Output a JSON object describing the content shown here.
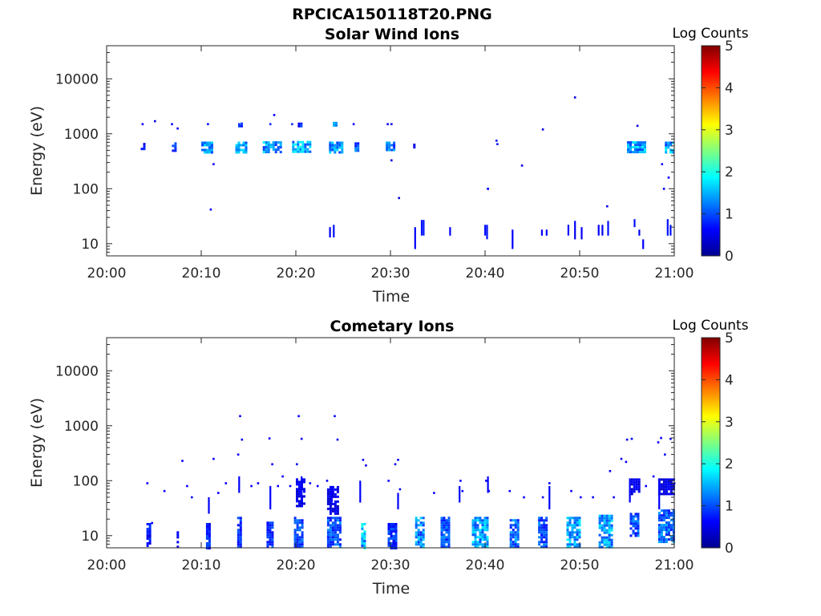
{
  "figure": {
    "main_title": "RPCICA150118T20.PNG"
  },
  "chart_data": [
    {
      "type": "heatmap",
      "title": "Solar Wind Ions",
      "xlabel": "Time",
      "ylabel": "Energy (eV)",
      "xticks": [
        "20:00",
        "20:10",
        "20:20",
        "20:30",
        "20:40",
        "20:50",
        "21:00"
      ],
      "xlim_min": [
        0,
        60
      ],
      "yticks": [
        10,
        100,
        1000,
        10000
      ],
      "ylim": [
        6,
        40000
      ],
      "yscale": "log",
      "colorbar": {
        "label": "Log Counts",
        "ticks": [
          0,
          1,
          2,
          3,
          4,
          5
        ],
        "range": [
          0,
          5
        ],
        "colormap": "jet"
      },
      "clusters": [
        {
          "t": [
            3.6,
            4.0
          ],
          "e": [
            520,
            680
          ],
          "c": 0.8
        },
        {
          "t": [
            6.9,
            7.2
          ],
          "e": [
            500,
            700
          ],
          "c": 0.9
        },
        {
          "t": [
            10.0,
            11.2
          ],
          "e": [
            480,
            720
          ],
          "c": 1.5
        },
        {
          "t": [
            13.6,
            14.8
          ],
          "e": [
            480,
            720
          ],
          "c": 1.6
        },
        {
          "t": [
            16.5,
            18.4
          ],
          "e": [
            470,
            730
          ],
          "c": 1.6
        },
        {
          "t": [
            19.6,
            21.5
          ],
          "e": [
            460,
            740
          ],
          "c": 1.7
        },
        {
          "t": [
            23.5,
            25.0
          ],
          "e": [
            460,
            720
          ],
          "c": 1.6
        },
        {
          "t": [
            26.2,
            26.6
          ],
          "e": [
            500,
            700
          ],
          "c": 1.2
        },
        {
          "t": [
            29.5,
            30.3
          ],
          "e": [
            500,
            720
          ],
          "c": 1.4
        },
        {
          "t": [
            32.4,
            32.6
          ],
          "e": [
            540,
            660
          ],
          "c": 0.8
        },
        {
          "t": [
            55.0,
            57.0
          ],
          "e": [
            470,
            730
          ],
          "c": 1.7
        },
        {
          "t": [
            59.0,
            60.0
          ],
          "e": [
            480,
            720
          ],
          "c": 1.6
        },
        {
          "t": [
            23.9,
            24.2
          ],
          "e": [
            1350,
            1650
          ],
          "c": 1.3
        },
        {
          "t": [
            13.9,
            14.2
          ],
          "e": [
            1400,
            1600
          ],
          "c": 1.1
        },
        {
          "t": [
            20.2,
            20.5
          ],
          "e": [
            1400,
            1600
          ],
          "c": 0.9
        }
      ],
      "points": [
        [
          3.8,
          1500,
          0.6
        ],
        [
          5.1,
          1700,
          0.5
        ],
        [
          6.9,
          1500,
          0.6
        ],
        [
          7.5,
          1250,
          0.6
        ],
        [
          10.7,
          1500,
          0.7
        ],
        [
          14.0,
          1500,
          0.8
        ],
        [
          17.3,
          1500,
          0.8
        ],
        [
          17.7,
          2200,
          0.6
        ],
        [
          19.6,
          1500,
          0.8
        ],
        [
          26.1,
          1500,
          0.6
        ],
        [
          29.7,
          1500,
          0.6
        ],
        [
          30.1,
          1500,
          0.6
        ],
        [
          11.3,
          280,
          0.6
        ],
        [
          11.0,
          42,
          0.6
        ],
        [
          30.1,
          330,
          0.5
        ],
        [
          30.9,
          68,
          0.4
        ],
        [
          40.3,
          100,
          0.7
        ],
        [
          40.3,
          100,
          0.7
        ],
        [
          41.2,
          750,
          0.7
        ],
        [
          41.3,
          650,
          0.7
        ],
        [
          43.9,
          265,
          0.5
        ],
        [
          46.1,
          1200,
          0.5
        ],
        [
          49.5,
          4600,
          0.5
        ],
        [
          56.1,
          1400,
          0.5
        ],
        [
          58.7,
          280,
          0.6
        ],
        [
          58.9,
          100,
          0.6
        ],
        [
          59.4,
          160,
          0.6
        ],
        [
          52.9,
          48,
          0.6
        ]
      ],
      "bars": [
        [
          23.6,
          13,
          20,
          0.6
        ],
        [
          24.0,
          13,
          22,
          0.7
        ],
        [
          32.6,
          8,
          20,
          0.6
        ],
        [
          33.3,
          14,
          27,
          0.7
        ],
        [
          33.5,
          14,
          27,
          0.7
        ],
        [
          36.3,
          14,
          20,
          0.6
        ],
        [
          40.0,
          14,
          22,
          0.7
        ],
        [
          40.2,
          12,
          22,
          0.7
        ],
        [
          42.9,
          8,
          18,
          0.6
        ],
        [
          46.0,
          14,
          18,
          0.6
        ],
        [
          46.5,
          14,
          18,
          0.6
        ],
        [
          48.8,
          14,
          22,
          0.6
        ],
        [
          49.5,
          12,
          26,
          0.6
        ],
        [
          50.2,
          12,
          20,
          0.6
        ],
        [
          52.0,
          14,
          22,
          0.6
        ],
        [
          52.4,
          14,
          22,
          0.6
        ],
        [
          53.0,
          14,
          26,
          0.7
        ],
        [
          55.8,
          20,
          28,
          0.7
        ],
        [
          56.3,
          14,
          18,
          0.6
        ],
        [
          56.7,
          8,
          12,
          0.6
        ],
        [
          59.3,
          14,
          28,
          0.7
        ],
        [
          59.6,
          14,
          22,
          0.7
        ]
      ]
    },
    {
      "type": "heatmap",
      "title": "Cometary Ions",
      "xlabel": "Time",
      "ylabel": "Energy (eV)",
      "xticks": [
        "20:00",
        "20:10",
        "20:20",
        "20:30",
        "20:40",
        "20:50",
        "21:00"
      ],
      "xlim_min": [
        0,
        60
      ],
      "yticks": [
        10,
        100,
        1000,
        10000
      ],
      "ylim": [
        6,
        40000
      ],
      "yscale": "log",
      "colorbar": {
        "label": "Log Counts",
        "ticks": [
          0,
          1,
          2,
          3,
          4,
          5
        ],
        "range": [
          0,
          5
        ],
        "colormap": "jet"
      },
      "clusters": [
        {
          "t": [
            4.2,
            4.7
          ],
          "e": [
            6,
            17
          ],
          "c": 0.8
        },
        {
          "t": [
            7.4,
            7.6
          ],
          "e": [
            6,
            12
          ],
          "c": 0.6
        },
        {
          "t": [
            10.5,
            11.0
          ],
          "e": [
            6,
            17
          ],
          "c": 0.9
        },
        {
          "t": [
            13.8,
            14.2
          ],
          "e": [
            6,
            22
          ],
          "c": 0.9
        },
        {
          "t": [
            16.9,
            17.6
          ],
          "e": [
            6,
            18
          ],
          "c": 1.0
        },
        {
          "t": [
            19.8,
            20.8
          ],
          "e": [
            6,
            22
          ],
          "c": 1.1
        },
        {
          "t": [
            23.3,
            24.6
          ],
          "e": [
            6,
            22
          ],
          "c": 1.2
        },
        {
          "t": [
            26.9,
            27.3
          ],
          "e": [
            6,
            17
          ],
          "c": 1.8
        },
        {
          "t": [
            29.7,
            30.7
          ],
          "e": [
            6,
            17
          ],
          "c": 1.0
        },
        {
          "t": [
            32.6,
            33.6
          ],
          "e": [
            6,
            22
          ],
          "c": 1.5
        },
        {
          "t": [
            35.3,
            36.3
          ],
          "e": [
            6,
            22
          ],
          "c": 1.2
        },
        {
          "t": [
            38.6,
            40.3
          ],
          "e": [
            6,
            22
          ],
          "c": 1.7
        },
        {
          "t": [
            42.6,
            43.6
          ],
          "e": [
            6,
            20
          ],
          "c": 1.3
        },
        {
          "t": [
            45.6,
            46.6
          ],
          "e": [
            6,
            22
          ],
          "c": 1.2
        },
        {
          "t": [
            48.6,
            49.9
          ],
          "e": [
            6,
            22
          ],
          "c": 1.6
        },
        {
          "t": [
            52.0,
            53.3
          ],
          "e": [
            6,
            24
          ],
          "c": 1.6
        },
        {
          "t": [
            55.3,
            56.3
          ],
          "e": [
            10,
            26
          ],
          "c": 1.2
        },
        {
          "t": [
            58.3,
            59.9
          ],
          "e": [
            8,
            30
          ],
          "c": 1.3
        },
        {
          "t": [
            55.4,
            56.3
          ],
          "e": [
            60,
            110
          ],
          "c": 0.6
        },
        {
          "t": [
            58.3,
            60.0
          ],
          "e": [
            60,
            110
          ],
          "c": 0.6
        },
        {
          "t": [
            20.0,
            20.8
          ],
          "e": [
            35,
            110
          ],
          "c": 0.6
        },
        {
          "t": [
            23.3,
            24.4
          ],
          "e": [
            25,
            80
          ],
          "c": 0.6
        }
      ],
      "points": [
        [
          4.3,
          90,
          0.6
        ],
        [
          4.8,
          17,
          0.6
        ],
        [
          6.1,
          65,
          0.6
        ],
        [
          8.0,
          230,
          0.6
        ],
        [
          8.5,
          80,
          0.6
        ],
        [
          9.0,
          50,
          0.6
        ],
        [
          11.3,
          250,
          0.6
        ],
        [
          11.8,
          60,
          0.6
        ],
        [
          12.6,
          90,
          0.6
        ],
        [
          13.9,
          300,
          0.6
        ],
        [
          14.3,
          560,
          0.6
        ],
        [
          14.1,
          1500,
          0.6
        ],
        [
          15.3,
          80,
          0.6
        ],
        [
          16.0,
          90,
          0.6
        ],
        [
          17.2,
          590,
          0.6
        ],
        [
          17.5,
          200,
          0.6
        ],
        [
          18.1,
          80,
          0.6
        ],
        [
          18.6,
          120,
          0.6
        ],
        [
          19.4,
          80,
          0.6
        ],
        [
          20.3,
          1500,
          0.6
        ],
        [
          20.6,
          580,
          0.6
        ],
        [
          20.1,
          200,
          0.6
        ],
        [
          21.5,
          90,
          0.6
        ],
        [
          22.3,
          80,
          0.6
        ],
        [
          23.3,
          100,
          0.6
        ],
        [
          24.1,
          1500,
          0.6
        ],
        [
          24.4,
          560,
          0.6
        ],
        [
          27.1,
          240,
          0.6
        ],
        [
          27.4,
          190,
          0.6
        ],
        [
          29.8,
          100,
          0.6
        ],
        [
          30.5,
          200,
          0.6
        ],
        [
          30.8,
          240,
          0.6
        ],
        [
          31.0,
          70,
          0.6
        ],
        [
          34.6,
          60,
          0.6
        ],
        [
          37.4,
          100,
          0.6
        ],
        [
          37.6,
          65,
          0.6
        ],
        [
          40.1,
          100,
          0.6
        ],
        [
          40.4,
          65,
          0.6
        ],
        [
          42.6,
          65,
          0.6
        ],
        [
          44.1,
          50,
          0.6
        ],
        [
          46.1,
          50,
          0.6
        ],
        [
          46.8,
          90,
          0.6
        ],
        [
          49.1,
          65,
          0.6
        ],
        [
          50.1,
          50,
          0.6
        ],
        [
          51.4,
          50,
          0.6
        ],
        [
          53.6,
          50,
          0.6
        ],
        [
          53.2,
          150,
          0.6
        ],
        [
          54.4,
          250,
          0.6
        ],
        [
          54.9,
          220,
          0.6
        ],
        [
          55.0,
          560,
          0.6
        ],
        [
          55.5,
          580,
          0.6
        ],
        [
          57.0,
          80,
          0.6
        ],
        [
          57.8,
          120,
          0.6
        ],
        [
          58.3,
          500,
          0.6
        ],
        [
          58.6,
          600,
          0.6
        ],
        [
          59.0,
          300,
          0.6
        ],
        [
          59.6,
          580,
          0.6
        ],
        [
          60.0,
          90,
          0.6
        ]
      ],
      "bars": [
        [
          10.8,
          25,
          50,
          0.6
        ],
        [
          14.0,
          60,
          120,
          0.6
        ],
        [
          17.3,
          30,
          80,
          0.6
        ],
        [
          20.6,
          40,
          120,
          0.6
        ],
        [
          23.8,
          40,
          80,
          0.6
        ],
        [
          26.8,
          40,
          100,
          0.6
        ],
        [
          30.8,
          30,
          60,
          0.6
        ],
        [
          37.3,
          40,
          80,
          0.6
        ],
        [
          40.3,
          60,
          120,
          0.6
        ],
        [
          46.8,
          30,
          80,
          0.6
        ],
        [
          55.3,
          40,
          110,
          0.6
        ],
        [
          58.4,
          30,
          110,
          0.6
        ]
      ]
    }
  ]
}
